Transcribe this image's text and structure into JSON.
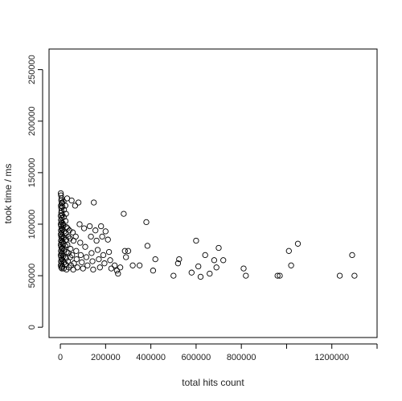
{
  "chart_data": {
    "type": "scatter",
    "title": "",
    "xlabel": "total hits count",
    "ylabel": "took time / ms",
    "xlim": [
      -50000,
      1400000
    ],
    "ylim": [
      -10000,
      270000
    ],
    "xticks": [
      0,
      200000,
      400000,
      600000,
      800000,
      1200000
    ],
    "xtick_labels": [
      "0",
      "200000",
      "400000",
      "600000",
      "800000",
      "1200000"
    ],
    "xtick_marks_unlabeled": [
      1000000,
      1400000
    ],
    "yticks": [
      0,
      50000,
      100000,
      150000,
      200000,
      250000
    ],
    "ytick_labels": [
      "0",
      "50000",
      "100000",
      "150000",
      "200000",
      "250000"
    ],
    "grid": false,
    "marker": "open-circle",
    "points": [
      [
        2000,
        130000
      ],
      [
        3000,
        128000
      ],
      [
        5000,
        125000
      ],
      [
        4000,
        123000
      ],
      [
        6000,
        120000
      ],
      [
        2500,
        118000
      ],
      [
        3500,
        116000
      ],
      [
        5000,
        113000
      ],
      [
        4000,
        111000
      ],
      [
        2000,
        108000
      ],
      [
        6000,
        106000
      ],
      [
        3000,
        104000
      ],
      [
        5000,
        102000
      ],
      [
        2000,
        100000
      ],
      [
        4000,
        98000
      ],
      [
        6000,
        96000
      ],
      [
        3000,
        94000
      ],
      [
        5000,
        92000
      ],
      [
        2000,
        90000
      ],
      [
        4000,
        88000
      ],
      [
        6000,
        86000
      ],
      [
        3000,
        84000
      ],
      [
        5000,
        82000
      ],
      [
        2000,
        80000
      ],
      [
        4000,
        78000
      ],
      [
        6000,
        76000
      ],
      [
        3000,
        74000
      ],
      [
        5000,
        72000
      ],
      [
        2000,
        70000
      ],
      [
        4000,
        68000
      ],
      [
        6000,
        66000
      ],
      [
        3000,
        64000
      ],
      [
        5000,
        62000
      ],
      [
        2000,
        60000
      ],
      [
        4000,
        58000
      ],
      [
        7000,
        57000
      ],
      [
        8000,
        121000
      ],
      [
        9000,
        117000
      ],
      [
        8000,
        109000
      ],
      [
        10000,
        101000
      ],
      [
        9000,
        95000
      ],
      [
        8000,
        89000
      ],
      [
        10000,
        83000
      ],
      [
        9000,
        77000
      ],
      [
        8000,
        71000
      ],
      [
        10000,
        65000
      ],
      [
        9000,
        59000
      ],
      [
        14000,
        122000
      ],
      [
        16000,
        114000
      ],
      [
        15000,
        107000
      ],
      [
        13000,
        99000
      ],
      [
        17000,
        93000
      ],
      [
        15000,
        87000
      ],
      [
        14000,
        81000
      ],
      [
        16000,
        75000
      ],
      [
        13000,
        69000
      ],
      [
        17000,
        63000
      ],
      [
        15000,
        57000
      ],
      [
        22000,
        118000
      ],
      [
        25000,
        110000
      ],
      [
        23000,
        103000
      ],
      [
        27000,
        97000
      ],
      [
        24000,
        91000
      ],
      [
        26000,
        85000
      ],
      [
        22000,
        79000
      ],
      [
        28000,
        73000
      ],
      [
        25000,
        67000
      ],
      [
        23000,
        61000
      ],
      [
        27000,
        56000
      ],
      [
        30000,
        125000
      ],
      [
        32000,
        96000
      ],
      [
        35000,
        88000
      ],
      [
        31000,
        80000
      ],
      [
        36000,
        72000
      ],
      [
        33000,
        64000
      ],
      [
        38000,
        58000
      ],
      [
        40000,
        94000
      ],
      [
        42000,
        86000
      ],
      [
        45000,
        76000
      ],
      [
        43000,
        68000
      ],
      [
        47000,
        60000
      ],
      [
        50000,
        123000
      ],
      [
        55000,
        92000
      ],
      [
        58000,
        84000
      ],
      [
        52000,
        70000
      ],
      [
        60000,
        62000
      ],
      [
        57000,
        56000
      ],
      [
        65000,
        118000
      ],
      [
        68000,
        88000
      ],
      [
        70000,
        74000
      ],
      [
        72000,
        66000
      ],
      [
        75000,
        58000
      ],
      [
        80000,
        121000
      ],
      [
        85000,
        100000
      ],
      [
        88000,
        82000
      ],
      [
        90000,
        70000
      ],
      [
        95000,
        63000
      ],
      [
        100000,
        57000
      ],
      [
        105000,
        96000
      ],
      [
        110000,
        78000
      ],
      [
        115000,
        68000
      ],
      [
        120000,
        60000
      ],
      [
        130000,
        98000
      ],
      [
        135000,
        88000
      ],
      [
        138000,
        72000
      ],
      [
        142000,
        64000
      ],
      [
        145000,
        56000
      ],
      [
        148000,
        121000
      ],
      [
        155000,
        94000
      ],
      [
        160000,
        84000
      ],
      [
        165000,
        75000
      ],
      [
        170000,
        66000
      ],
      [
        175000,
        58000
      ],
      [
        180000,
        98000
      ],
      [
        185000,
        88000
      ],
      [
        190000,
        70000
      ],
      [
        195000,
        62000
      ],
      [
        200000,
        93000
      ],
      [
        210000,
        85000
      ],
      [
        215000,
        73000
      ],
      [
        220000,
        65000
      ],
      [
        225000,
        57000
      ],
      [
        240000,
        60000
      ],
      [
        250000,
        55000
      ],
      [
        255000,
        52000
      ],
      [
        265000,
        58000
      ],
      [
        280000,
        110000
      ],
      [
        285000,
        74000
      ],
      [
        290000,
        68000
      ],
      [
        300000,
        74000
      ],
      [
        320000,
        60000
      ],
      [
        350000,
        60000
      ],
      [
        380000,
        102000
      ],
      [
        385000,
        79000
      ],
      [
        410000,
        55000
      ],
      [
        420000,
        66000
      ],
      [
        500000,
        50000
      ],
      [
        520000,
        62000
      ],
      [
        525000,
        66000
      ],
      [
        580000,
        53000
      ],
      [
        600000,
        84000
      ],
      [
        610000,
        59000
      ],
      [
        620000,
        49000
      ],
      [
        640000,
        70000
      ],
      [
        660000,
        52000
      ],
      [
        680000,
        65000
      ],
      [
        690000,
        58000
      ],
      [
        700000,
        77000
      ],
      [
        720000,
        65000
      ],
      [
        810000,
        57000
      ],
      [
        820000,
        50000
      ],
      [
        960000,
        50000
      ],
      [
        970000,
        50000
      ],
      [
        1010000,
        74000
      ],
      [
        1020000,
        60000
      ],
      [
        1050000,
        81000
      ],
      [
        1235000,
        50000
      ],
      [
        1290000,
        70000
      ],
      [
        1300000,
        50000
      ]
    ]
  }
}
